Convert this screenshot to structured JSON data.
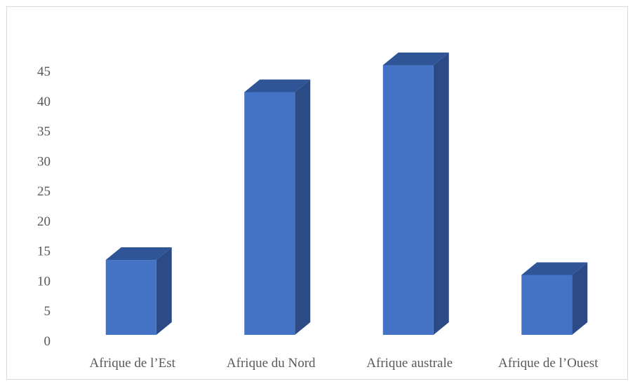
{
  "chart_data": {
    "type": "bar",
    "style": "3d-column",
    "categories": [
      "Afrique de l’Est",
      "Afrique du Nord",
      "Afrique australe",
      "Afrique de l’Ouest"
    ],
    "values": [
      12.5,
      40.5,
      45,
      10
    ],
    "ylim": [
      0,
      45
    ],
    "yticks": [
      0,
      5,
      10,
      15,
      20,
      25,
      30,
      35,
      40,
      45
    ],
    "grid": false,
    "colors": {
      "front": "#4472c4",
      "side": "#2c4a86",
      "top": "#2f5597"
    }
  }
}
